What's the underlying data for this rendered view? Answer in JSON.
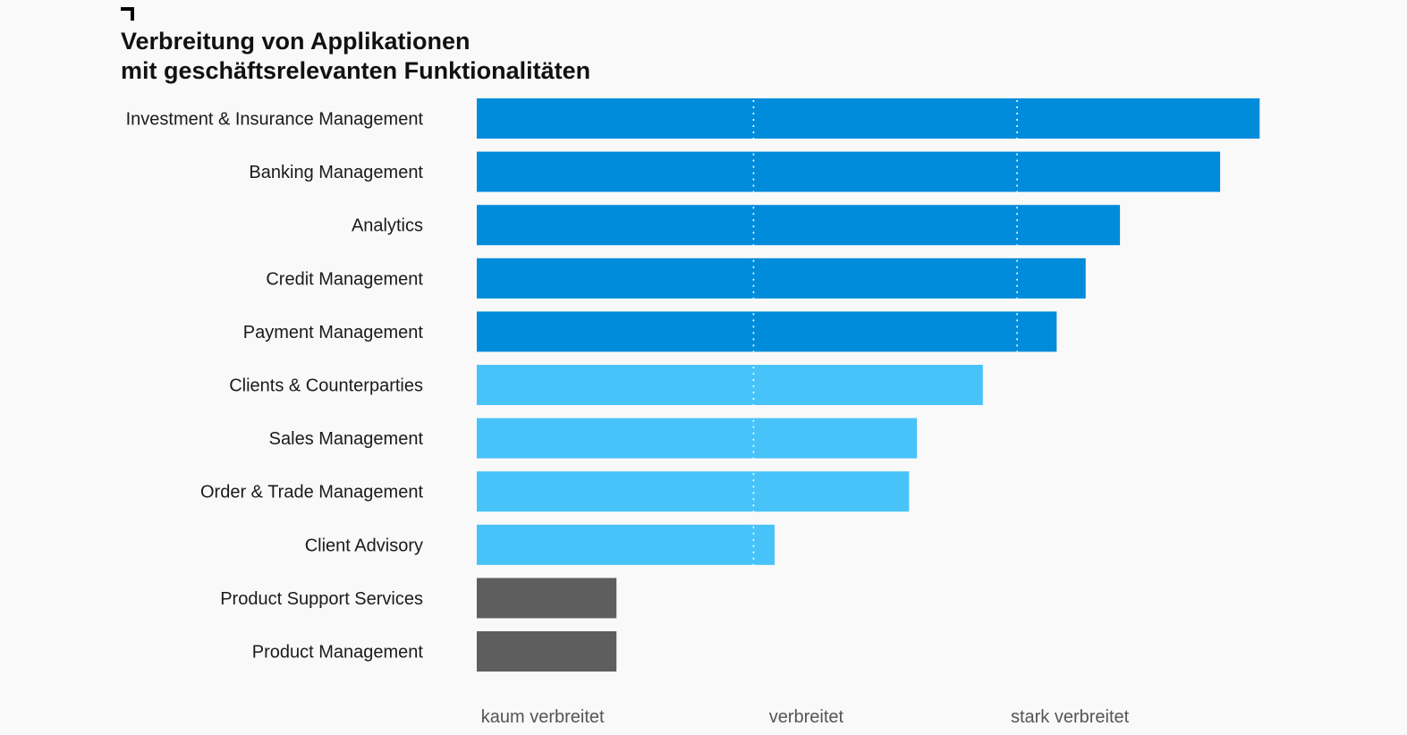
{
  "title": {
    "line1": "Verbreitung von Applikationen",
    "line2": "mit geschäftsrelevanten Funktionalitäten"
  },
  "colors": {
    "dark_blue": "#008bdb",
    "light_blue": "#47c3fa",
    "gray": "#5e5e5e",
    "background": "#f9f9f9",
    "reference_line": "#ffffff"
  },
  "chart_data": {
    "type": "bar",
    "orientation": "horizontal",
    "categories": [
      "Investment & Insurance Management",
      "Banking Management",
      "Analytics",
      "Credit Management",
      "Payment Management",
      "Clients & Counterparties",
      "Sales Management",
      "Order & Trade Management",
      "Client Advisory",
      "Product Support Services",
      "Product Management"
    ],
    "values": [
      2.97,
      2.82,
      2.44,
      2.31,
      2.2,
      1.92,
      1.67,
      1.64,
      1.13,
      0.53,
      0.53
    ],
    "bar_colors": [
      "dark_blue",
      "dark_blue",
      "dark_blue",
      "dark_blue",
      "dark_blue",
      "light_blue",
      "light_blue",
      "light_blue",
      "light_blue",
      "gray",
      "gray"
    ],
    "xlim": [
      0,
      3
    ],
    "reference_lines": [
      1.05,
      2.05
    ],
    "x_tick_labels": [
      {
        "label": "kaum verbreitet",
        "value": 0.25
      },
      {
        "label": "verbreitet",
        "value": 1.25
      },
      {
        "label": "stark verbreitet",
        "value": 2.25
      }
    ],
    "grid": false,
    "legend": "none"
  }
}
